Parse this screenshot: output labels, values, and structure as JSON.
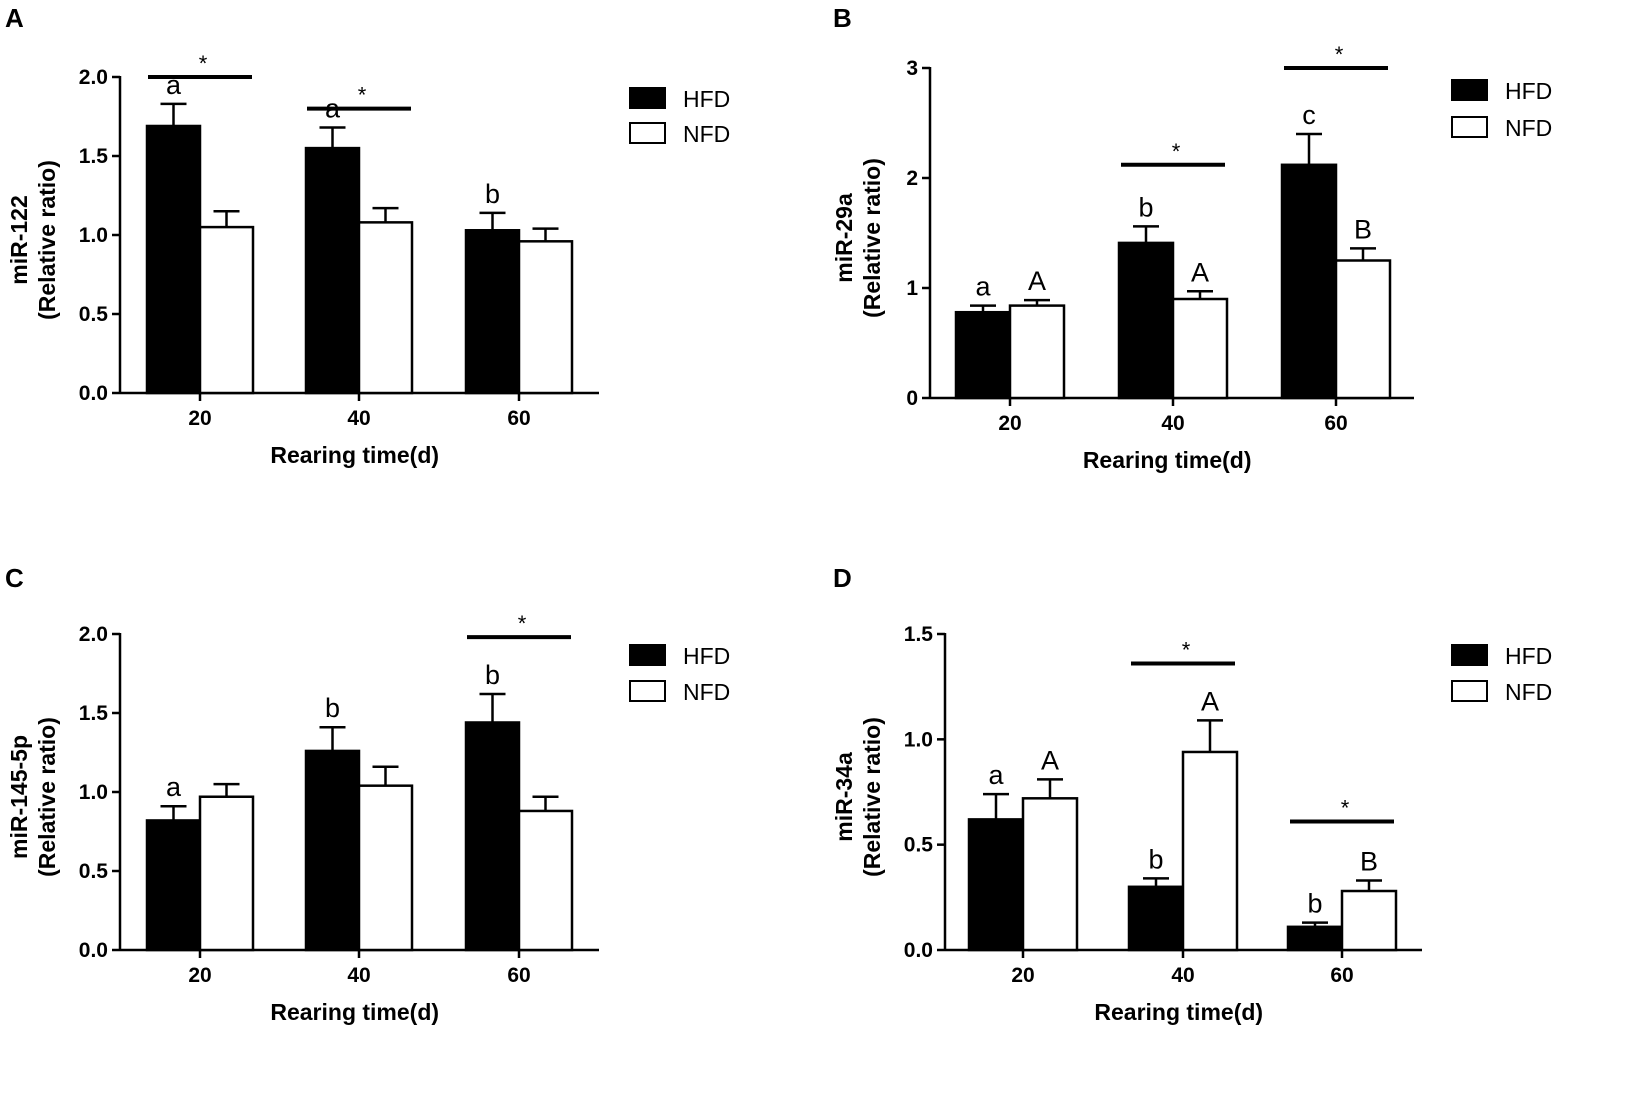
{
  "chart_data": [
    {
      "panel": "A",
      "type": "bar",
      "ylabel_line1": "miR-122",
      "ylabel_line2": "(Relative ratio)",
      "xlabel": "Rearing time(d)",
      "categories": [
        "20",
        "40",
        "60"
      ],
      "ylim": [
        0,
        2.0
      ],
      "yticks": [
        "0.0",
        "0.5",
        "1.0",
        "1.5",
        "2.0"
      ],
      "series": [
        {
          "name": "HFD",
          "color": "#000000",
          "values": [
            1.69,
            1.55,
            1.03
          ],
          "errors": [
            0.14,
            0.13,
            0.11
          ],
          "letters": [
            "a",
            "a",
            "b"
          ]
        },
        {
          "name": "NFD",
          "color": "#ffffff",
          "values": [
            1.05,
            1.08,
            0.96
          ],
          "errors": [
            0.1,
            0.09,
            0.08
          ],
          "letters": [
            "",
            "",
            ""
          ]
        }
      ],
      "significance": [
        {
          "category": 0,
          "label": "*",
          "level": 2.0
        },
        {
          "category": 1,
          "label": "*",
          "level": 1.8
        }
      ]
    },
    {
      "panel": "B",
      "type": "bar",
      "ylabel_line1": "miR-29a",
      "ylabel_line2": "(Relative ratio)",
      "xlabel": "Rearing time(d)",
      "categories": [
        "20",
        "40",
        "60"
      ],
      "ylim": [
        0,
        3
      ],
      "yticks": [
        "0",
        "1",
        "2",
        "3"
      ],
      "series": [
        {
          "name": "HFD",
          "color": "#000000",
          "values": [
            0.78,
            1.41,
            2.12
          ],
          "errors": [
            0.06,
            0.15,
            0.28
          ],
          "letters": [
            "a",
            "b",
            "c"
          ]
        },
        {
          "name": "NFD",
          "color": "#ffffff",
          "values": [
            0.84,
            0.9,
            1.25
          ],
          "errors": [
            0.05,
            0.07,
            0.11
          ],
          "letters": [
            "A",
            "A",
            "B"
          ]
        }
      ],
      "significance": [
        {
          "category": 1,
          "label": "*",
          "level": 2.12
        },
        {
          "category": 2,
          "label": "*",
          "level": 3.0
        }
      ]
    },
    {
      "panel": "C",
      "type": "bar",
      "ylabel_line1": "miR-145-5p",
      "ylabel_line2": "(Relative ratio)",
      "xlabel": "Rearing time(d)",
      "categories": [
        "20",
        "40",
        "60"
      ],
      "ylim": [
        0,
        2.0
      ],
      "yticks": [
        "0.0",
        "0.5",
        "1.0",
        "1.5",
        "2.0"
      ],
      "series": [
        {
          "name": "HFD",
          "color": "#000000",
          "values": [
            0.82,
            1.26,
            1.44
          ],
          "errors": [
            0.09,
            0.15,
            0.18
          ],
          "letters": [
            "a",
            "b",
            "b"
          ]
        },
        {
          "name": "NFD",
          "color": "#ffffff",
          "values": [
            0.97,
            1.04,
            0.88
          ],
          "errors": [
            0.08,
            0.12,
            0.09
          ],
          "letters": [
            "",
            "",
            ""
          ]
        }
      ],
      "significance": [
        {
          "category": 2,
          "label": "*",
          "level": 1.98
        }
      ]
    },
    {
      "panel": "D",
      "type": "bar",
      "ylabel_line1": "miR-34a",
      "ylabel_line2": "(Relative ratio)",
      "xlabel": "Rearing time(d)",
      "categories": [
        "20",
        "40",
        "60"
      ],
      "ylim": [
        0,
        1.5
      ],
      "yticks": [
        "0.0",
        "0.5",
        "1.0",
        "1.5"
      ],
      "series": [
        {
          "name": "HFD",
          "color": "#000000",
          "values": [
            0.62,
            0.3,
            0.11
          ],
          "errors": [
            0.12,
            0.04,
            0.02
          ],
          "letters": [
            "a",
            "b",
            "b"
          ]
        },
        {
          "name": "NFD",
          "color": "#ffffff",
          "values": [
            0.72,
            0.94,
            0.28
          ],
          "errors": [
            0.09,
            0.15,
            0.05
          ],
          "letters": [
            "A",
            "A",
            "B"
          ]
        }
      ],
      "significance": [
        {
          "category": 1,
          "label": "*",
          "level": 1.36
        },
        {
          "category": 2,
          "label": "*",
          "level": 0.61
        }
      ]
    }
  ]
}
